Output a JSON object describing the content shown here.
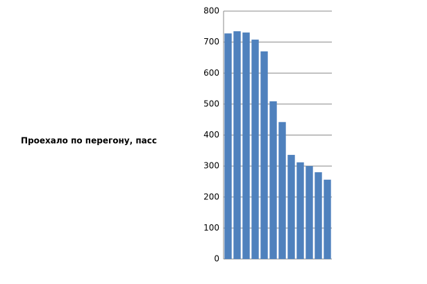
{
  "chart_data": {
    "type": "bar",
    "y_label": "Проехало по перегону, пасс",
    "categories": [
      null,
      null,
      null,
      null,
      null,
      null,
      null,
      null,
      null,
      null,
      null,
      null
    ],
    "values": [
      728,
      735,
      731,
      708,
      670,
      509,
      442,
      336,
      312,
      300,
      280,
      256
    ],
    "color": "#4f81bd",
    "ylim": [
      0,
      800
    ],
    "yticks": [
      0,
      100,
      200,
      300,
      400,
      500,
      600,
      700,
      800
    ],
    "grid": true
  }
}
